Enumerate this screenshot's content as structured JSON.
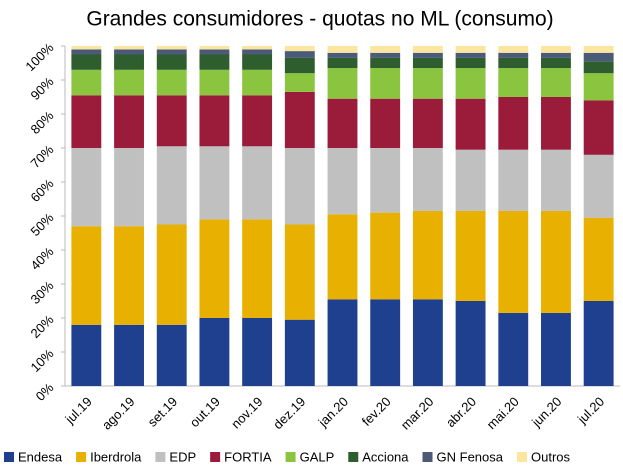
{
  "chart_data": {
    "type": "stacked_bar",
    "title": "Grandes consumidores - quotas no ML (consumo)",
    "categories": [
      "jul.19",
      "ago.19",
      "set.19",
      "out.19",
      "nov.19",
      "dez.19",
      "jan.20",
      "fev.20",
      "mar.20",
      "abr.20",
      "mai.20",
      "jun.20",
      "jul.20"
    ],
    "series": [
      {
        "name": "Endesa",
        "color": "#1f3f8f",
        "values": [
          18,
          18,
          18,
          20,
          20,
          19.5,
          25.5,
          25.5,
          25.5,
          25,
          21.5,
          21.5,
          25
        ]
      },
      {
        "name": "Iberdrola",
        "color": "#e8b000",
        "values": [
          29,
          29,
          29.5,
          29,
          29,
          28,
          25,
          25.5,
          26,
          26.5,
          30,
          30,
          24.5
        ]
      },
      {
        "name": "EDP",
        "color": "#c0c0c0",
        "values": [
          23,
          23,
          23,
          21.5,
          21.5,
          22.5,
          19.5,
          19,
          18.5,
          18,
          18,
          18,
          18.5
        ]
      },
      {
        "name": "FORTIA",
        "color": "#9b1b3a",
        "values": [
          15.5,
          15.5,
          15,
          15,
          15,
          16.5,
          14.5,
          14.5,
          14.5,
          15,
          15.5,
          15.5,
          16
        ]
      },
      {
        "name": "GALP",
        "color": "#8bc43f",
        "values": [
          7.5,
          7.5,
          7.5,
          7.5,
          7.5,
          5.5,
          9,
          9,
          9,
          9,
          8.5,
          8.5,
          8
        ]
      },
      {
        "name": "Acciona",
        "color": "#2e5e2e",
        "values": [
          4.5,
          4.5,
          4.5,
          4.5,
          4.5,
          4.5,
          3,
          3,
          3,
          3,
          3,
          3,
          3.5
        ]
      },
      {
        "name": "GN Fenosa",
        "color": "#4a5a78",
        "values": [
          1.5,
          1.5,
          1.5,
          1.5,
          1.5,
          2,
          1.5,
          1.5,
          1.5,
          1.5,
          1.5,
          1.5,
          2.5
        ]
      },
      {
        "name": "Outros",
        "color": "#fbe6a0",
        "values": [
          1,
          1,
          1,
          1,
          1,
          1.5,
          2,
          2,
          2,
          2,
          2,
          2,
          2
        ]
      }
    ],
    "ylim": [
      0,
      100
    ],
    "yticks": [
      {
        "value": 0,
        "label": "0%"
      },
      {
        "value": 10,
        "label": "10%"
      },
      {
        "value": 20,
        "label": "20%"
      },
      {
        "value": 30,
        "label": "30%"
      },
      {
        "value": 40,
        "label": "40%"
      },
      {
        "value": 50,
        "label": "50%"
      },
      {
        "value": 60,
        "label": "60%"
      },
      {
        "value": 70,
        "label": "70%"
      },
      {
        "value": 80,
        "label": "80%"
      },
      {
        "value": 90,
        "label": "90%"
      },
      {
        "value": 100,
        "label": "100%"
      }
    ],
    "legend": "bottom"
  }
}
